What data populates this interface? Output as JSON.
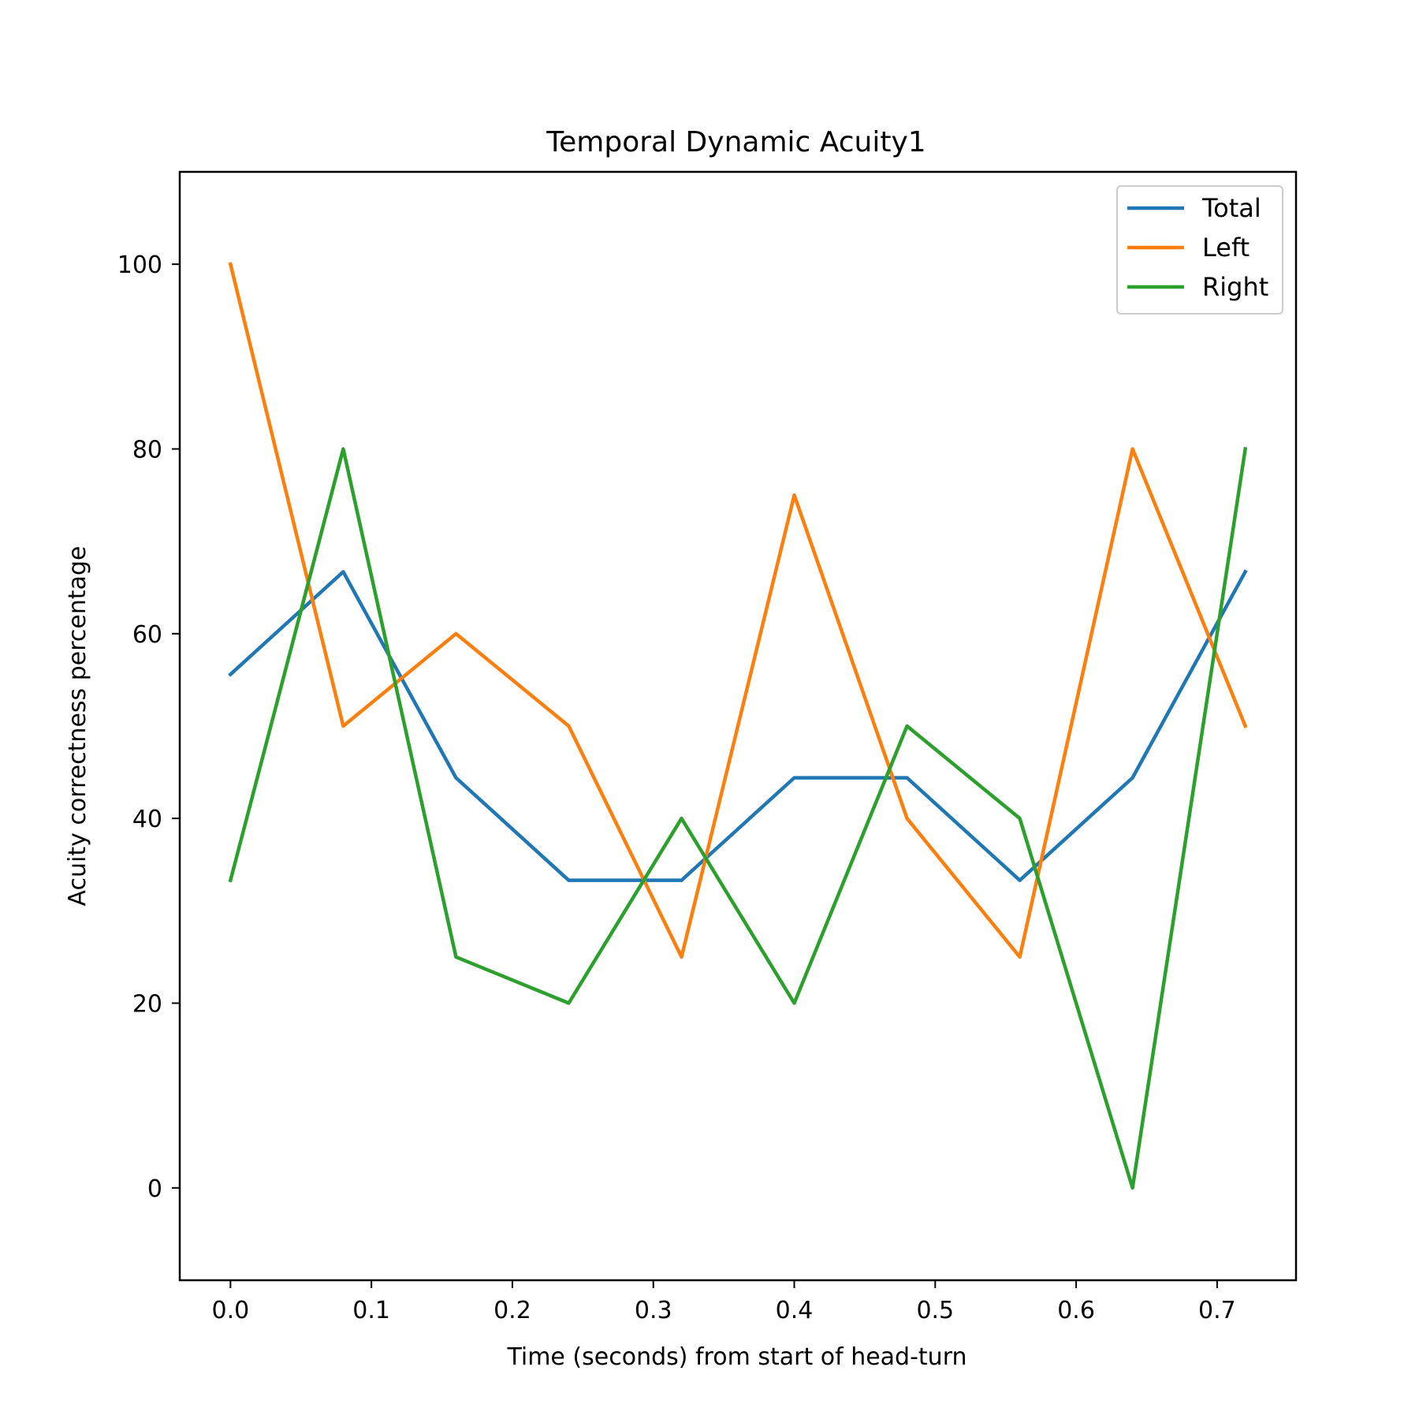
{
  "chart_data": {
    "type": "line",
    "title": "Temporal Dynamic Acuity1",
    "xlabel": "Time (seconds) from start of head-turn",
    "ylabel": "Acuity correctness percentage",
    "x": [
      0.0,
      0.08,
      0.16,
      0.24,
      0.32,
      0.4,
      0.48,
      0.56,
      0.64,
      0.72
    ],
    "xlim": [
      -0.036,
      0.756
    ],
    "ylim": [
      -10,
      110
    ],
    "xticks": [
      "0.0",
      "0.1",
      "0.2",
      "0.3",
      "0.4",
      "0.5",
      "0.6",
      "0.7"
    ],
    "xtick_values": [
      0.0,
      0.1,
      0.2,
      0.3,
      0.4,
      0.5,
      0.6,
      0.7
    ],
    "yticks": [
      "0",
      "20",
      "40",
      "60",
      "80",
      "100"
    ],
    "ytick_values": [
      0,
      20,
      40,
      60,
      80,
      100
    ],
    "grid": false,
    "legend_position": "top-right",
    "series": [
      {
        "name": "Total",
        "color": "#1f77b4",
        "values": [
          55.6,
          66.7,
          44.4,
          33.3,
          33.3,
          44.4,
          44.4,
          33.3,
          44.4,
          66.7
        ]
      },
      {
        "name": "Left",
        "color": "#ff7f0e",
        "values": [
          100,
          50,
          60,
          50,
          25,
          75,
          40,
          25,
          80,
          50
        ]
      },
      {
        "name": "Right",
        "color": "#2ca02c",
        "values": [
          33.3,
          80,
          25,
          20,
          40,
          20,
          50,
          40,
          0,
          80
        ]
      }
    ]
  }
}
